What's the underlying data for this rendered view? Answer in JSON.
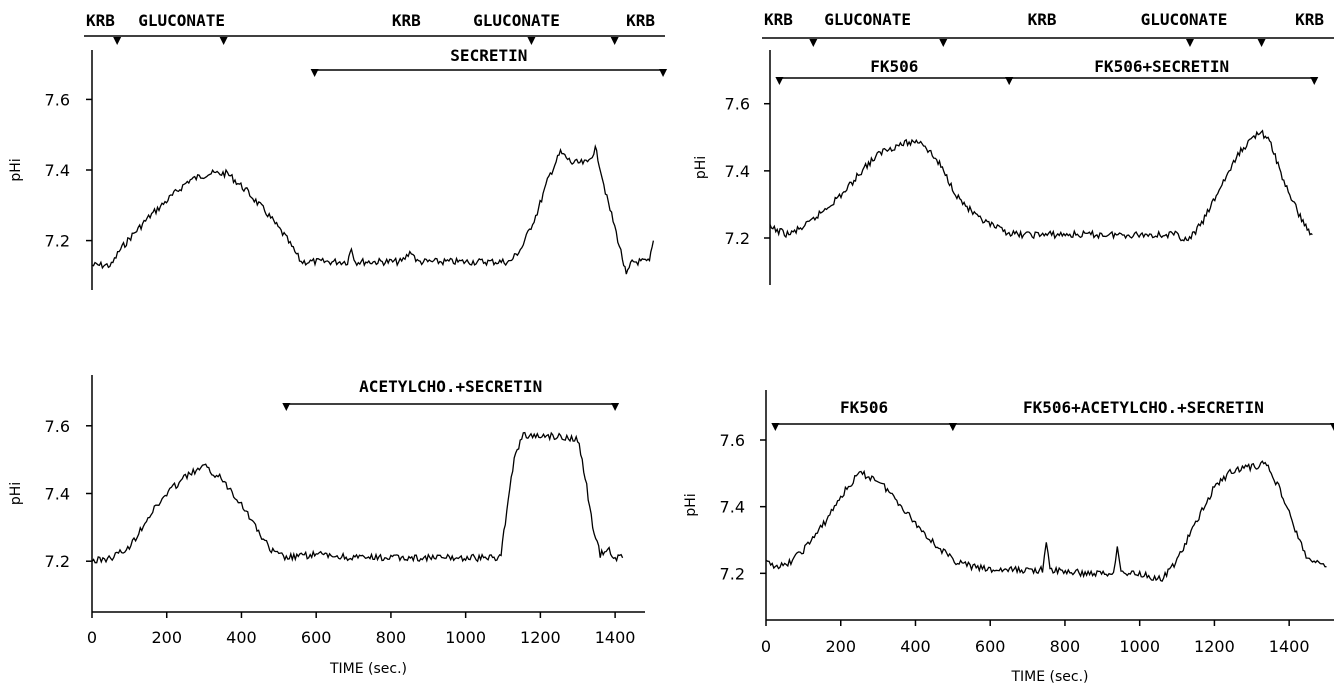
{
  "chart_data": [
    {
      "type": "line",
      "xlabel": "",
      "ylabel": "pHi",
      "xlim": [
        0,
        1480
      ],
      "ylim": [
        7.06,
        7.74
      ],
      "yticks": [
        "7.6",
        "7.4",
        "7.2"
      ],
      "xticks": [],
      "bars": [
        {
          "text": "SECRETIN",
          "x1": 575,
          "x2": 1475
        }
      ],
      "top_labels": [
        {
          "text": "KRB",
          "x": 0
        },
        {
          "text": "GLUCONATE",
          "x": 135
        },
        {
          "text": "KRB",
          "x": 790
        },
        {
          "text": "GLUCONATE",
          "x": 1000
        },
        {
          "text": "KRB",
          "x": 1395
        }
      ],
      "top_markers": [
        65,
        340,
        1135,
        1350
      ],
      "series": [
        {
          "values": [
            [
              0,
              7.13
            ],
            [
              50,
              7.13
            ],
            [
              70,
              7.17
            ],
            [
              100,
              7.21
            ],
            [
              150,
              7.27
            ],
            [
              200,
              7.32
            ],
            [
              250,
              7.37
            ],
            [
              300,
              7.39
            ],
            [
              350,
              7.39
            ],
            [
              400,
              7.34
            ],
            [
              450,
              7.28
            ],
            [
              500,
              7.21
            ],
            [
              540,
              7.14
            ],
            [
              600,
              7.14
            ],
            [
              660,
              7.14
            ],
            [
              670,
              7.18
            ],
            [
              680,
              7.14
            ],
            [
              800,
              7.14
            ],
            [
              825,
              7.17
            ],
            [
              840,
              7.14
            ],
            [
              1000,
              7.14
            ],
            [
              1080,
              7.14
            ],
            [
              1110,
              7.18
            ],
            [
              1150,
              7.28
            ],
            [
              1180,
              7.38
            ],
            [
              1210,
              7.45
            ],
            [
              1240,
              7.42
            ],
            [
              1280,
              7.42
            ],
            [
              1300,
              7.46
            ],
            [
              1310,
              7.42
            ],
            [
              1330,
              7.32
            ],
            [
              1350,
              7.24
            ],
            [
              1370,
              7.15
            ],
            [
              1380,
              7.1
            ],
            [
              1395,
              7.14
            ],
            [
              1440,
              7.14
            ],
            [
              1450,
              7.2
            ]
          ]
        }
      ]
    },
    {
      "type": "line",
      "xlabel": "",
      "ylabel": "pHi",
      "xlim": [
        0,
        1500
      ],
      "ylim": [
        7.06,
        7.76
      ],
      "yticks": [
        "7.6",
        "7.4",
        "7.2"
      ],
      "xticks": [],
      "bars": [
        {
          "text": "FK506",
          "x1": 25,
          "x2": 635
        },
        {
          "text": "FK506+SECRETIN",
          "x1": 635,
          "x2": 1445
        }
      ],
      "top_labels": [
        {
          "text": "KRB",
          "x": 0
        },
        {
          "text": "GLUCONATE",
          "x": 160
        },
        {
          "text": "KRB",
          "x": 700
        },
        {
          "text": "GLUCONATE",
          "x": 1000
        },
        {
          "text": "KRB",
          "x": 1410
        }
      ],
      "top_markers": [
        115,
        460,
        1115,
        1305
      ],
      "series": [
        {
          "values": [
            [
              0,
              7.23
            ],
            [
              50,
              7.21
            ],
            [
              100,
              7.24
            ],
            [
              150,
              7.29
            ],
            [
              200,
              7.34
            ],
            [
              250,
              7.41
            ],
            [
              300,
              7.46
            ],
            [
              350,
              7.48
            ],
            [
              400,
              7.49
            ],
            [
              450,
              7.42
            ],
            [
              500,
              7.32
            ],
            [
              550,
              7.26
            ],
            [
              600,
              7.23
            ],
            [
              650,
              7.21
            ],
            [
              700,
              7.21
            ],
            [
              800,
              7.21
            ],
            [
              900,
              7.21
            ],
            [
              1000,
              7.21
            ],
            [
              1080,
              7.21
            ],
            [
              1110,
              7.19
            ],
            [
              1150,
              7.25
            ],
            [
              1200,
              7.36
            ],
            [
              1250,
              7.46
            ],
            [
              1300,
              7.52
            ],
            [
              1330,
              7.48
            ],
            [
              1360,
              7.38
            ],
            [
              1400,
              7.28
            ],
            [
              1430,
              7.22
            ],
            [
              1440,
              7.21
            ]
          ]
        }
      ]
    },
    {
      "type": "line",
      "xlabel": "TIME (sec.)",
      "ylabel": "pHi",
      "xlim": [
        0,
        1480
      ],
      "ylim": [
        7.05,
        7.75
      ],
      "yticks": [
        "7.6",
        "7.4",
        "7.2"
      ],
      "xticks": [
        "0",
        "200",
        "400",
        "600",
        "800",
        "1000",
        "1200",
        "1400"
      ],
      "xtickvals": [
        0,
        200,
        400,
        600,
        800,
        1000,
        1200,
        1400
      ],
      "bars": [
        {
          "text": "ACETYLCHO.+SECRETIN",
          "x1": 520,
          "x2": 1400
        }
      ],
      "top_labels": [],
      "top_markers": [],
      "series": [
        {
          "values": [
            [
              0,
              7.2
            ],
            [
              50,
              7.21
            ],
            [
              100,
              7.24
            ],
            [
              150,
              7.33
            ],
            [
              200,
              7.4
            ],
            [
              250,
              7.45
            ],
            [
              300,
              7.48
            ],
            [
              350,
              7.44
            ],
            [
              400,
              7.37
            ],
            [
              450,
              7.28
            ],
            [
              480,
              7.23
            ],
            [
              520,
              7.21
            ],
            [
              600,
              7.22
            ],
            [
              700,
              7.21
            ],
            [
              800,
              7.21
            ],
            [
              900,
              7.21
            ],
            [
              1000,
              7.21
            ],
            [
              1080,
              7.21
            ],
            [
              1095,
              7.22
            ],
            [
              1110,
              7.35
            ],
            [
              1130,
              7.5
            ],
            [
              1150,
              7.57
            ],
            [
              1200,
              7.57
            ],
            [
              1250,
              7.57
            ],
            [
              1300,
              7.56
            ],
            [
              1320,
              7.45
            ],
            [
              1340,
              7.3
            ],
            [
              1360,
              7.22
            ],
            [
              1380,
              7.24
            ],
            [
              1400,
              7.21
            ],
            [
              1420,
              7.21
            ]
          ]
        }
      ]
    },
    {
      "type": "line",
      "xlabel": "TIME (sec.)",
      "ylabel": "pHi",
      "xlim": [
        0,
        1520
      ],
      "ylim": [
        7.06,
        7.75
      ],
      "yticks": [
        "7.6",
        "7.4",
        "7.2"
      ],
      "xticks": [
        "0",
        "200",
        "400",
        "600",
        "800",
        "1000",
        "1200",
        "1400"
      ],
      "xtickvals": [
        0,
        200,
        400,
        600,
        800,
        1000,
        1200,
        1400
      ],
      "bars": [
        {
          "text": "FK506",
          "x1": 25,
          "x2": 500
        },
        {
          "text": "FK506+ACETYLCHO.+SECRETIN",
          "x1": 500,
          "x2": 1520
        }
      ],
      "top_labels": [],
      "top_markers": [],
      "series": [
        {
          "values": [
            [
              0,
              7.23
            ],
            [
              50,
              7.22
            ],
            [
              100,
              7.27
            ],
            [
              150,
              7.34
            ],
            [
              200,
              7.43
            ],
            [
              250,
              7.5
            ],
            [
              300,
              7.48
            ],
            [
              350,
              7.42
            ],
            [
              400,
              7.35
            ],
            [
              450,
              7.29
            ],
            [
              500,
              7.24
            ],
            [
              550,
              7.22
            ],
            [
              600,
              7.21
            ],
            [
              700,
              7.21
            ],
            [
              740,
              7.21
            ],
            [
              750,
              7.29
            ],
            [
              760,
              7.21
            ],
            [
              850,
              7.2
            ],
            [
              930,
              7.2
            ],
            [
              940,
              7.29
            ],
            [
              950,
              7.2
            ],
            [
              1000,
              7.2
            ],
            [
              1060,
              7.18
            ],
            [
              1100,
              7.24
            ],
            [
              1150,
              7.35
            ],
            [
              1200,
              7.46
            ],
            [
              1250,
              7.51
            ],
            [
              1300,
              7.52
            ],
            [
              1340,
              7.53
            ],
            [
              1380,
              7.44
            ],
            [
              1420,
              7.32
            ],
            [
              1450,
              7.24
            ],
            [
              1500,
              7.22
            ]
          ]
        }
      ]
    }
  ]
}
